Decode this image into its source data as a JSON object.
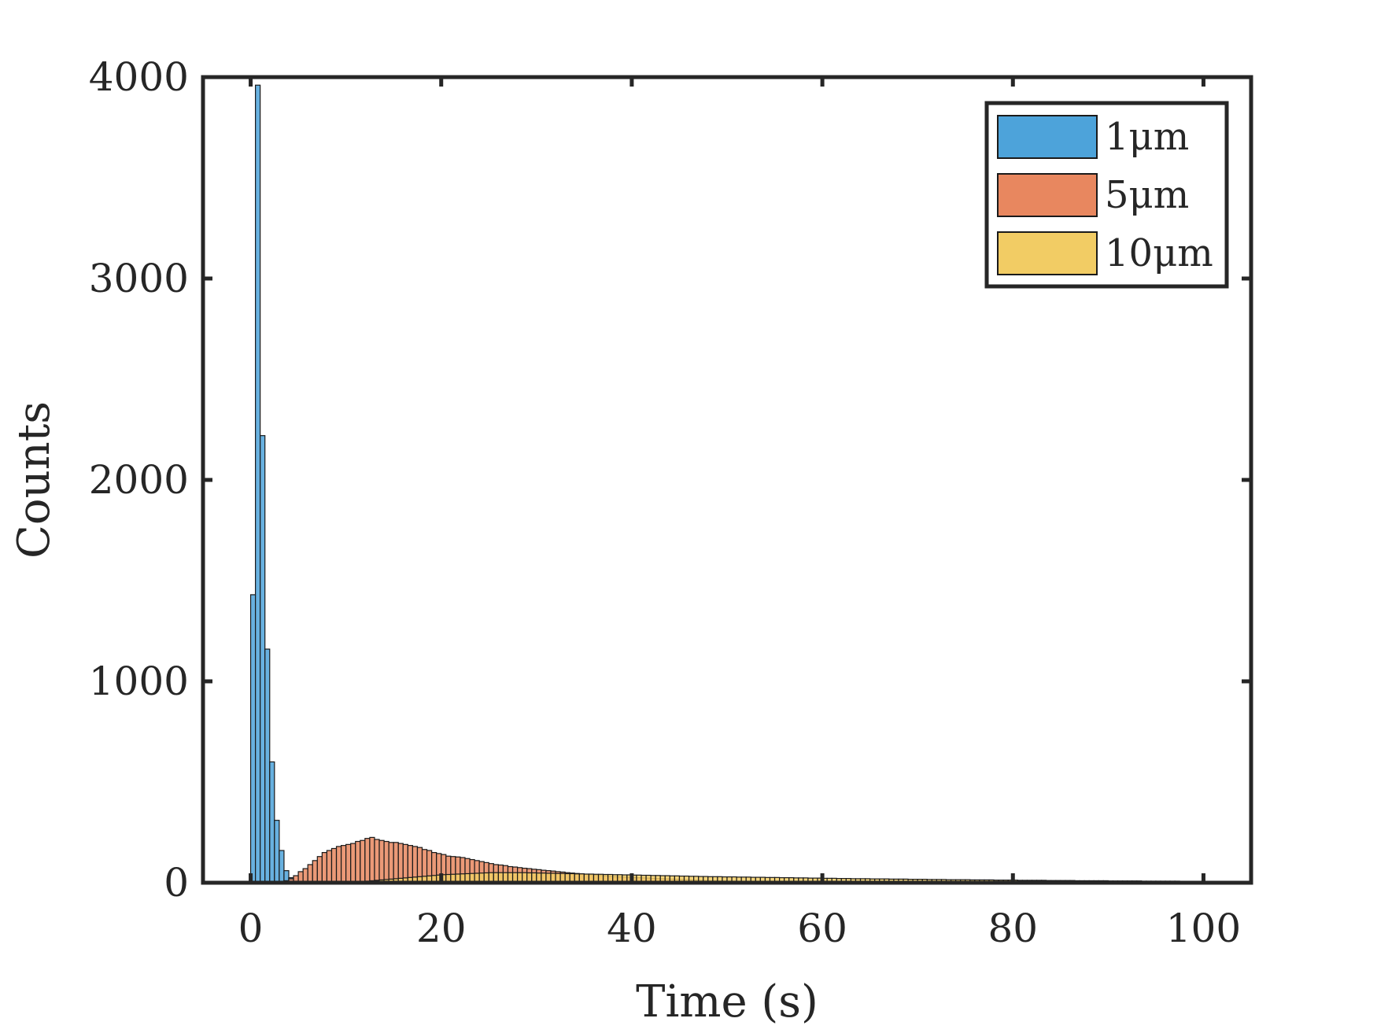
{
  "chart_data": {
    "type": "bar",
    "subtype": "overlaid-histogram",
    "title": "",
    "xlabel": "Time (s)",
    "ylabel": "Counts",
    "xlim": [
      -5,
      105
    ],
    "ylim": [
      0,
      4000
    ],
    "xticks": [
      0,
      20,
      40,
      60,
      80,
      100
    ],
    "yticks": [
      0,
      1000,
      2000,
      3000,
      4000
    ],
    "xtick_labels": [
      "0",
      "20",
      "40",
      "60",
      "80",
      "100"
    ],
    "ytick_labels": [
      "0",
      "1000",
      "2000",
      "3000",
      "4000"
    ],
    "grid": false,
    "legend": {
      "position": "top-right",
      "entries": [
        "1μm",
        "5μm",
        "10μm"
      ]
    },
    "bin_width": 0.5,
    "series": [
      {
        "name": "1μm",
        "color": "#4DA3DA",
        "edge": "#1a1a1a",
        "bin_start": 0,
        "counts": [
          1430,
          3960,
          2220,
          1160,
          600,
          310,
          160,
          60,
          25,
          8
        ]
      },
      {
        "name": "5μm",
        "color": "#E8875F",
        "edge": "#1a1a1a",
        "bin_start": 3,
        "counts": [
          5,
          10,
          20,
          35,
          55,
          70,
          90,
          110,
          130,
          150,
          160,
          170,
          180,
          185,
          190,
          195,
          205,
          210,
          220,
          225,
          215,
          210,
          205,
          200,
          200,
          195,
          190,
          185,
          180,
          175,
          165,
          160,
          150,
          145,
          140,
          132,
          130,
          128,
          125,
          120,
          115,
          110,
          105,
          100,
          95,
          90,
          88,
          85,
          80,
          78,
          75,
          72,
          70,
          67,
          65,
          62,
          60,
          58,
          55,
          53,
          50,
          48,
          46,
          44,
          42,
          40,
          38,
          36,
          34,
          32,
          30,
          29,
          28,
          27,
          26,
          25,
          24,
          23,
          22,
          21,
          20,
          19,
          18,
          17,
          16,
          15,
          14,
          13,
          12,
          11,
          10,
          10,
          9,
          9,
          8,
          8,
          7,
          7,
          6,
          6,
          5,
          5,
          5,
          4,
          4,
          4,
          3,
          3,
          3,
          3,
          2,
          2,
          2,
          2,
          2,
          2,
          1,
          1,
          1,
          1,
          1,
          1,
          1,
          1,
          1,
          1
        ]
      },
      {
        "name": "10μm",
        "color": "#F2CC64",
        "edge": "#1a1a1a",
        "bin_start": 10,
        "counts": [
          2,
          3,
          4,
          6,
          8,
          10,
          12,
          14,
          16,
          18,
          20,
          22,
          24,
          26,
          28,
          30,
          32,
          34,
          36,
          38,
          40,
          41,
          42,
          43,
          44,
          45,
          46,
          47,
          48,
          49,
          50,
          50,
          50,
          50,
          50,
          50,
          50,
          50,
          49,
          49,
          48,
          48,
          47,
          47,
          46,
          46,
          45,
          45,
          44,
          44,
          43,
          43,
          42,
          42,
          41,
          41,
          40,
          40,
          39,
          39,
          38,
          38,
          37,
          37,
          36,
          36,
          35,
          35,
          34,
          34,
          33,
          33,
          32,
          32,
          31,
          31,
          30,
          30,
          30,
          29,
          29,
          29,
          28,
          28,
          28,
          27,
          27,
          27,
          26,
          26,
          26,
          25,
          25,
          25,
          24,
          24,
          24,
          23,
          23,
          23,
          22,
          22,
          22,
          21,
          21,
          21,
          20,
          20,
          20,
          20,
          19,
          19,
          19,
          19,
          18,
          18,
          18,
          18,
          17,
          17,
          17,
          17,
          16,
          16,
          16,
          16,
          15,
          15,
          15,
          15,
          15,
          14,
          14,
          14,
          14,
          14,
          13,
          13,
          13,
          13,
          13,
          12,
          12,
          12,
          12,
          12,
          12,
          11,
          11,
          11,
          11,
          11,
          11,
          10,
          10,
          10,
          10,
          10,
          10,
          10,
          9,
          9,
          9,
          9,
          9,
          9,
          9,
          8,
          8,
          8,
          8,
          8,
          8,
          8,
          8,
          7,
          7,
          7,
          7,
          7,
          7,
          7
        ]
      }
    ]
  }
}
